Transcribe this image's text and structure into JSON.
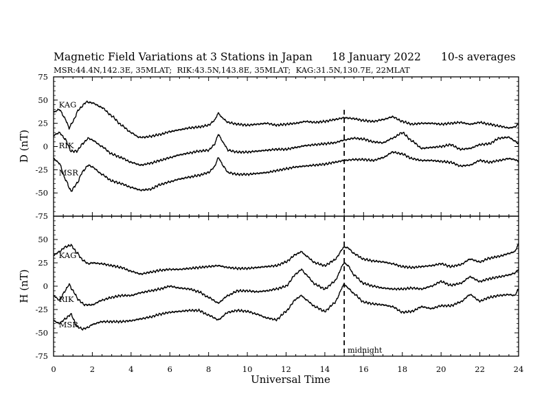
{
  "header": {
    "title": "Magnetic Field Variations at 3 Stations in Japan",
    "date": "18 January 2022",
    "averaging": "10-s averages",
    "stations_line": "MSR:44.4N,142.3E, 35MLAT;  RIK:43.5N,143.8E, 35MLAT;  KAG:31.5N,130.7E, 22MLAT"
  },
  "chart_data": {
    "type": "line",
    "xlabel": "Universal Time",
    "xlim": [
      0,
      24
    ],
    "xticks": [
      0,
      2,
      4,
      6,
      8,
      10,
      12,
      14,
      16,
      18,
      20,
      22,
      24
    ],
    "annotation": {
      "x": 15,
      "label": "midnight",
      "style": "dashed"
    },
    "colors": {
      "line": "#000000",
      "axes": "#000000",
      "background": "#ffffff"
    },
    "panels": [
      {
        "ylabel": "D (nT)",
        "ylim": [
          -75,
          75
        ],
        "yticks": [
          -75,
          -50,
          -25,
          0,
          25,
          50,
          75
        ],
        "series": [
          {
            "name": "KAG",
            "label_at": [
              0.2,
              45
            ],
            "x": [
              0,
              0.3,
              0.6,
              0.8,
              1.0,
              1.3,
              1.7,
              2.0,
              2.5,
              3.0,
              3.5,
              4.0,
              4.4,
              4.7,
              5.0,
              5.5,
              6.0,
              6.5,
              7.0,
              7.5,
              8.0,
              8.3,
              8.5,
              8.7,
              9.0,
              9.5,
              10,
              10.5,
              11,
              11.5,
              12,
              12.5,
              13,
              13.5,
              14,
              14.5,
              15,
              15.5,
              16,
              16.5,
              17,
              17.5,
              18,
              18.5,
              19,
              19.5,
              20,
              20.5,
              21,
              21.5,
              22,
              22.5,
              23,
              23.5,
              23.8,
              24
            ],
            "values": [
              37,
              40,
              30,
              20,
              27,
              40,
              48,
              47,
              42,
              33,
              23,
              15,
              10,
              10,
              11,
              13,
              16,
              18,
              20,
              21,
              23,
              28,
              36,
              31,
              26,
              24,
              23,
              24,
              25,
              23,
              24,
              25,
              27,
              26,
              27,
              29,
              31,
              30,
              28,
              27,
              29,
              32,
              27,
              24,
              25,
              25,
              24,
              25,
              26,
              24,
              26,
              24,
              22,
              20,
              21,
              24
            ]
          },
          {
            "name": "RIK",
            "label_at": [
              0.2,
              1
            ],
            "x": [
              0,
              0.3,
              0.6,
              0.9,
              1.2,
              1.5,
              1.8,
              2.0,
              2.5,
              3.0,
              3.5,
              4.0,
              4.5,
              5.0,
              5.5,
              6.0,
              6.5,
              7.0,
              7.5,
              8.0,
              8.3,
              8.5,
              8.8,
              9.0,
              9.5,
              10,
              10.5,
              11,
              11.5,
              12,
              12.5,
              13,
              13.5,
              14,
              14.5,
              15,
              15.5,
              16,
              16.5,
              17,
              17.5,
              18,
              18.5,
              19,
              19.5,
              20,
              20.5,
              21,
              21.5,
              22,
              22.5,
              23,
              23.5,
              23.8,
              24
            ],
            "values": [
              12,
              15,
              8,
              -5,
              -5,
              3,
              9,
              7,
              0,
              -8,
              -12,
              -17,
              -20,
              -18,
              -15,
              -12,
              -9,
              -7,
              -5,
              -4,
              2,
              13,
              3,
              -4,
              -6,
              -6,
              -5,
              -4,
              -3,
              -3,
              -1,
              1,
              2,
              3,
              4,
              7,
              9,
              8,
              5,
              4,
              9,
              15,
              6,
              -2,
              -1,
              0,
              2,
              -3,
              -2,
              2,
              3,
              9,
              10,
              6,
              3
            ]
          },
          {
            "name": "MSR",
            "label_at": [
              0.2,
              -28
            ],
            "x": [
              0,
              0.3,
              0.6,
              0.9,
              1.2,
              1.5,
              1.8,
              2.0,
              2.5,
              3.0,
              3.5,
              4.0,
              4.5,
              5.0,
              5.5,
              6.0,
              6.5,
              7.0,
              7.5,
              8.0,
              8.3,
              8.5,
              8.8,
              9.0,
              9.5,
              10,
              10.5,
              11,
              11.5,
              12,
              12.5,
              13,
              13.5,
              14,
              14.5,
              15,
              15.5,
              16,
              16.5,
              17,
              17.5,
              18,
              18.5,
              19,
              19.5,
              20,
              20.5,
              21,
              21.5,
              22,
              22.5,
              23,
              23.5,
              23.8,
              24
            ],
            "values": [
              -13,
              -18,
              -35,
              -48,
              -40,
              -27,
              -20,
              -22,
              -30,
              -37,
              -40,
              -44,
              -47,
              -46,
              -41,
              -38,
              -35,
              -33,
              -31,
              -28,
              -22,
              -12,
              -22,
              -28,
              -30,
              -30,
              -29,
              -28,
              -26,
              -24,
              -22,
              -21,
              -20,
              -19,
              -17,
              -15,
              -14,
              -14,
              -15,
              -12,
              -6,
              -8,
              -13,
              -15,
              -15,
              -16,
              -17,
              -21,
              -20,
              -15,
              -17,
              -15,
              -13,
              -14,
              -16
            ]
          }
        ]
      },
      {
        "ylabel": "H (nT)",
        "ylim": [
          -75,
          75
        ],
        "yticks": [
          -75,
          -50,
          -25,
          0,
          25,
          50,
          75
        ],
        "series": [
          {
            "name": "KAG",
            "label_at": [
              0.2,
              33
            ],
            "x": [
              0,
              0.3,
              0.6,
              0.9,
              1.2,
              1.5,
              1.8,
              2.0,
              2.5,
              3.0,
              3.5,
              4.0,
              4.5,
              5.0,
              5.5,
              6.0,
              6.5,
              7.0,
              7.5,
              8.0,
              8.5,
              9.0,
              9.5,
              10,
              10.5,
              11,
              11.5,
              12,
              12.5,
              12.8,
              13.0,
              13.5,
              14,
              14.5,
              15.0,
              15.2,
              15.5,
              16,
              16.5,
              17,
              17.5,
              18,
              18.5,
              19,
              19.5,
              20,
              20.5,
              21,
              21.5,
              22,
              22.5,
              23,
              23.5,
              23.8,
              24
            ],
            "values": [
              33,
              37,
              42,
              44,
              36,
              28,
              24,
              25,
              24,
              22,
              20,
              16,
              13,
              15,
              17,
              18,
              18,
              19,
              20,
              21,
              22,
              20,
              19,
              19,
              20,
              21,
              22,
              26,
              34,
              37,
              33,
              25,
              22,
              28,
              42,
              41,
              35,
              29,
              27,
              26,
              24,
              21,
              20,
              21,
              22,
              24,
              21,
              23,
              29,
              26,
              30,
              32,
              35,
              37,
              45
            ]
          },
          {
            "name": "RIK",
            "label_at": [
              0.2,
              -14
            ],
            "x": [
              0,
              0.3,
              0.6,
              0.8,
              1.0,
              1.3,
              1.6,
              2.0,
              2.5,
              3.0,
              3.5,
              4.0,
              4.5,
              5.0,
              5.5,
              6.0,
              6.5,
              7.0,
              7.5,
              8.0,
              8.5,
              9.0,
              9.5,
              10,
              10.5,
              11,
              11.5,
              12,
              12.5,
              12.8,
              13.0,
              13.5,
              14,
              14.5,
              15.0,
              15.2,
              15.5,
              16,
              16.5,
              17,
              17.5,
              18,
              18.5,
              19,
              19.5,
              20,
              20.5,
              21,
              21.5,
              22,
              22.5,
              23,
              23.5,
              23.8,
              24
            ],
            "values": [
              -10,
              -15,
              -5,
              2,
              -5,
              -15,
              -20,
              -20,
              -15,
              -12,
              -10,
              -10,
              -7,
              -5,
              -3,
              0,
              -2,
              -3,
              -6,
              -12,
              -18,
              -10,
              -5,
              -5,
              -6,
              -5,
              -3,
              0,
              13,
              18,
              13,
              2,
              -3,
              5,
              25,
              22,
              12,
              3,
              0,
              -2,
              -3,
              -3,
              -2,
              -3,
              0,
              5,
              1,
              3,
              10,
              5,
              8,
              10,
              12,
              14,
              18
            ]
          },
          {
            "name": "MSR",
            "label_at": [
              0.2,
              -41
            ],
            "x": [
              0,
              0.3,
              0.6,
              0.9,
              1.2,
              1.5,
              1.8,
              2.0,
              2.5,
              3.0,
              3.5,
              4.0,
              4.5,
              5.0,
              5.5,
              6.0,
              6.5,
              7.0,
              7.5,
              8.0,
              8.5,
              9.0,
              9.5,
              10,
              10.5,
              11,
              11.5,
              12,
              12.5,
              12.8,
              13.0,
              13.5,
              14,
              14.5,
              15.0,
              15.2,
              15.5,
              16,
              16.5,
              17,
              17.5,
              18,
              18.5,
              19,
              19.5,
              20,
              20.5,
              21,
              21.5,
              22,
              22.5,
              23,
              23.5,
              23.8,
              24
            ],
            "values": [
              -37,
              -40,
              -35,
              -30,
              -43,
              -46,
              -44,
              -41,
              -38,
              -38,
              -38,
              -37,
              -35,
              -33,
              -30,
              -28,
              -27,
              -26,
              -26,
              -31,
              -36,
              -28,
              -26,
              -27,
              -30,
              -34,
              -36,
              -27,
              -14,
              -10,
              -14,
              -22,
              -27,
              -18,
              2,
              -2,
              -8,
              -17,
              -19,
              -20,
              -22,
              -28,
              -27,
              -22,
              -24,
              -21,
              -21,
              -17,
              -9,
              -16,
              -12,
              -10,
              -9,
              -10,
              -3
            ]
          }
        ]
      }
    ]
  }
}
